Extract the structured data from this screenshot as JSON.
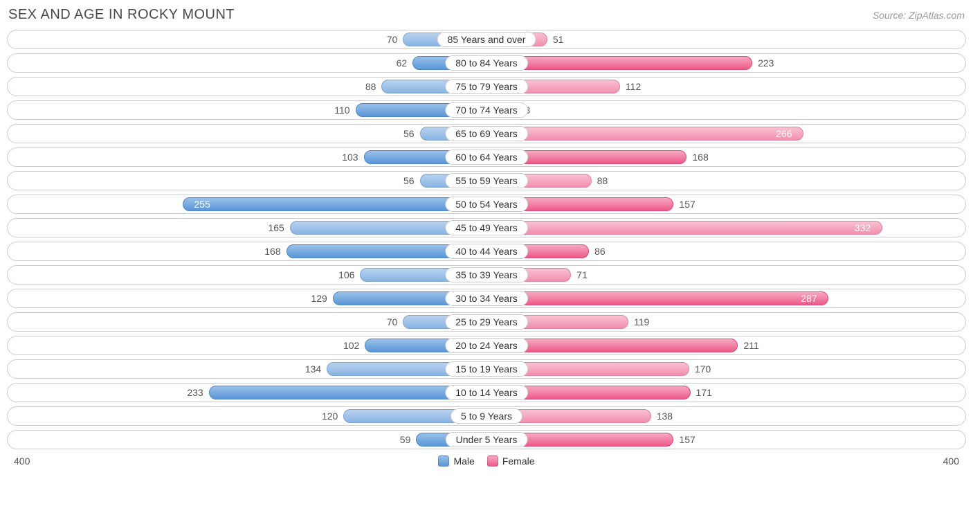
{
  "title": "SEX AND AGE IN ROCKY MOUNT",
  "source": "Source: ZipAtlas.com",
  "chart": {
    "type": "butterfly-bar",
    "axis_max": 400,
    "axis_label_left": "400",
    "axis_label_right": "400",
    "inside_label_threshold": 250,
    "male_color_dark": "#5a96d8",
    "male_color_light": "#8ab4e2",
    "female_color_dark": "#ec5a88",
    "female_color_light": "#f290ae",
    "border_color": "#cccccc",
    "background_color": "#ffffff",
    "label_font_size": 14,
    "title_font_size": 20,
    "legend": [
      {
        "label": "Male",
        "key": "male"
      },
      {
        "label": "Female",
        "key": "female"
      }
    ],
    "rows": [
      {
        "category": "85 Years and over",
        "male": 70,
        "female": 51
      },
      {
        "category": "80 to 84 Years",
        "male": 62,
        "female": 223
      },
      {
        "category": "75 to 79 Years",
        "male": 88,
        "female": 112
      },
      {
        "category": "70 to 74 Years",
        "male": 110,
        "female": 23
      },
      {
        "category": "65 to 69 Years",
        "male": 56,
        "female": 266
      },
      {
        "category": "60 to 64 Years",
        "male": 103,
        "female": 168
      },
      {
        "category": "55 to 59 Years",
        "male": 56,
        "female": 88
      },
      {
        "category": "50 to 54 Years",
        "male": 255,
        "female": 157
      },
      {
        "category": "45 to 49 Years",
        "male": 165,
        "female": 332
      },
      {
        "category": "40 to 44 Years",
        "male": 168,
        "female": 86
      },
      {
        "category": "35 to 39 Years",
        "male": 106,
        "female": 71
      },
      {
        "category": "30 to 34 Years",
        "male": 129,
        "female": 287
      },
      {
        "category": "25 to 29 Years",
        "male": 70,
        "female": 119
      },
      {
        "category": "20 to 24 Years",
        "male": 102,
        "female": 211
      },
      {
        "category": "15 to 19 Years",
        "male": 134,
        "female": 170
      },
      {
        "category": "10 to 14 Years",
        "male": 233,
        "female": 171
      },
      {
        "category": "5 to 9 Years",
        "male": 120,
        "female": 138
      },
      {
        "category": "Under 5 Years",
        "male": 59,
        "female": 157
      }
    ]
  }
}
